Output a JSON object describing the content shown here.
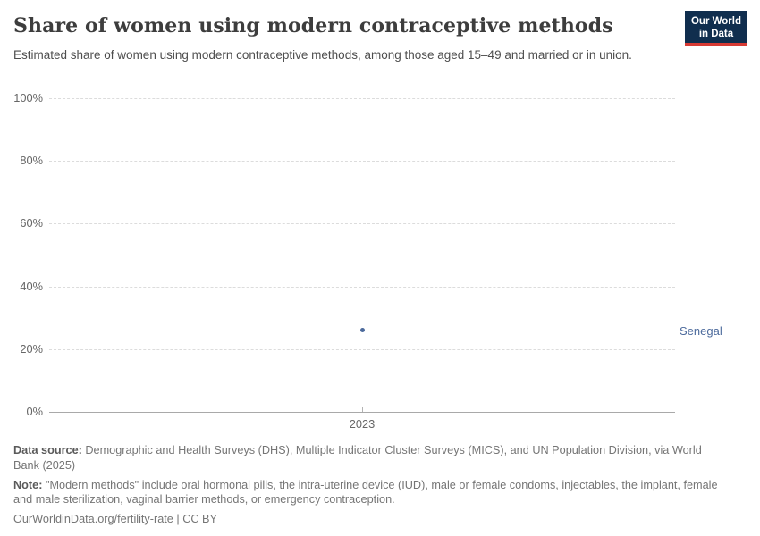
{
  "header": {
    "title": "Share of women using modern contraceptive methods",
    "subtitle": "Estimated share of women using modern contraceptive methods, among those aged 15–49 and married or in union.",
    "logo": {
      "line1": "Our World",
      "line2": "in Data"
    }
  },
  "chart_data": {
    "type": "scatter",
    "x": [
      2023
    ],
    "series": [
      {
        "name": "Senegal",
        "values": [
          26
        ],
        "color": "#4c6a9c"
      }
    ],
    "xticks": [
      {
        "value": 2023,
        "label": "2023"
      }
    ],
    "yticks": [
      {
        "value": 0,
        "label": "0%"
      },
      {
        "value": 20,
        "label": "20%"
      },
      {
        "value": 40,
        "label": "40%"
      },
      {
        "value": 60,
        "label": "60%"
      },
      {
        "value": 80,
        "label": "80%"
      },
      {
        "value": 100,
        "label": "100%"
      }
    ],
    "ylim": [
      0,
      100
    ],
    "grid": "horizontal-dashed",
    "legend_position": "entity-label-right"
  },
  "footer": {
    "datasource_label": "Data source:",
    "datasource_text": "Demographic and Health Surveys (DHS), Multiple Indicator Cluster Surveys (MICS), and UN Population Division, via World Bank (2025)",
    "note_label": "Note:",
    "note_text": "\"Modern methods\" include oral hormonal pills, the intra-uterine device (IUD), male or female condoms, injectables, the implant, female and male sterilization, vaginal barrier methods, or emergency contraception.",
    "permalink": "OurWorldinData.org/fertility-rate | CC BY"
  },
  "colors": {
    "accent": "#4c6a9c",
    "logo_navy": "#102e4e",
    "logo_red": "#d73a34",
    "gridline": "#dcdcdc",
    "axis": "#a9a9a9"
  }
}
